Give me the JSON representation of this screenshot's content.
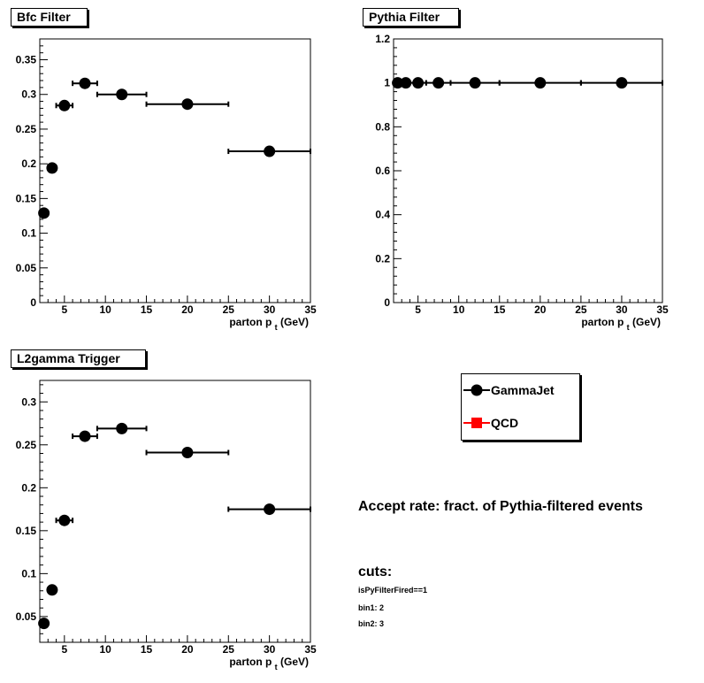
{
  "chart_data": [
    {
      "type": "scatter",
      "title": "Bfc Filter",
      "xlabel": "parton p",
      "xlabel_sub": "t",
      "xlabel_unit": "(GeV)",
      "xlim": [
        2,
        35
      ],
      "ylim": [
        0,
        0.38
      ],
      "xticks": [
        5,
        10,
        15,
        20,
        25,
        30,
        35
      ],
      "yticks": [
        0,
        0.05,
        0.1,
        0.15,
        0.2,
        0.25,
        0.3,
        0.35
      ],
      "ytick_labels": [
        "0",
        "0.05",
        "0.1",
        "0.15",
        "0.2",
        "0.25",
        "0.3",
        "0.35"
      ],
      "series": [
        {
          "name": "GammaJet",
          "x": [
            2.5,
            3.5,
            5,
            7.5,
            12,
            20,
            30
          ],
          "xerr_low": [
            0.5,
            0.5,
            1,
            1.5,
            3,
            5,
            5
          ],
          "xerr_high": [
            0.5,
            0.5,
            1,
            1.5,
            3,
            5,
            5
          ],
          "y": [
            0.129,
            0.194,
            0.284,
            0.316,
            0.3,
            0.286,
            0.218
          ]
        }
      ]
    },
    {
      "type": "scatter",
      "title": "Pythia Filter",
      "xlabel": "parton p",
      "xlabel_sub": "t",
      "xlabel_unit": "(GeV)",
      "xlim": [
        2,
        35
      ],
      "ylim": [
        0,
        1.2
      ],
      "xticks": [
        5,
        10,
        15,
        20,
        25,
        30,
        35
      ],
      "yticks": [
        0,
        0.2,
        0.4,
        0.6,
        0.8,
        1,
        1.2
      ],
      "ytick_labels": [
        "0",
        "0.2",
        "0.4",
        "0.6",
        "0.8",
        "1",
        "1.2"
      ],
      "series": [
        {
          "name": "GammaJet",
          "x": [
            2.5,
            3.5,
            5,
            7.5,
            12,
            20,
            30
          ],
          "xerr_low": [
            0.5,
            0.5,
            1,
            1.5,
            3,
            5,
            5
          ],
          "xerr_high": [
            0.5,
            0.5,
            1,
            1.5,
            3,
            5,
            5
          ],
          "y": [
            1,
            1,
            1,
            1,
            1,
            1,
            1
          ]
        }
      ]
    },
    {
      "type": "scatter",
      "title": "L2gamma Trigger",
      "xlabel": "parton p",
      "xlabel_sub": "t",
      "xlabel_unit": "(GeV)",
      "xlim": [
        2,
        35
      ],
      "ylim": [
        0.02,
        0.325
      ],
      "xticks": [
        5,
        10,
        15,
        20,
        25,
        30,
        35
      ],
      "yticks": [
        0.05,
        0.1,
        0.15,
        0.2,
        0.25,
        0.3
      ],
      "ytick_labels": [
        "0.05",
        "0.1",
        "0.15",
        "0.2",
        "0.25",
        "0.3"
      ],
      "series": [
        {
          "name": "GammaJet",
          "x": [
            2.5,
            3.5,
            5,
            7.5,
            12,
            20,
            30
          ],
          "xerr_low": [
            0.5,
            0.5,
            1,
            1.5,
            3,
            5,
            5
          ],
          "xerr_high": [
            0.5,
            0.5,
            1,
            1.5,
            3,
            5,
            5
          ],
          "y": [
            0.042,
            0.081,
            0.162,
            0.26,
            0.269,
            0.241,
            0.175
          ]
        }
      ]
    }
  ],
  "legend": {
    "entries": [
      {
        "label": "GammaJet",
        "marker": "circle",
        "color": "#000000"
      },
      {
        "label": "QCD",
        "marker": "square",
        "color": "#ff0000"
      }
    ]
  },
  "annotations": {
    "accept_rate": "Accept rate: fract. of Pythia-filtered events",
    "cuts_heading": "cuts:",
    "cut_lines": [
      "isPyFilterFired==1",
      "bin1: 2",
      "bin2: 3"
    ]
  }
}
